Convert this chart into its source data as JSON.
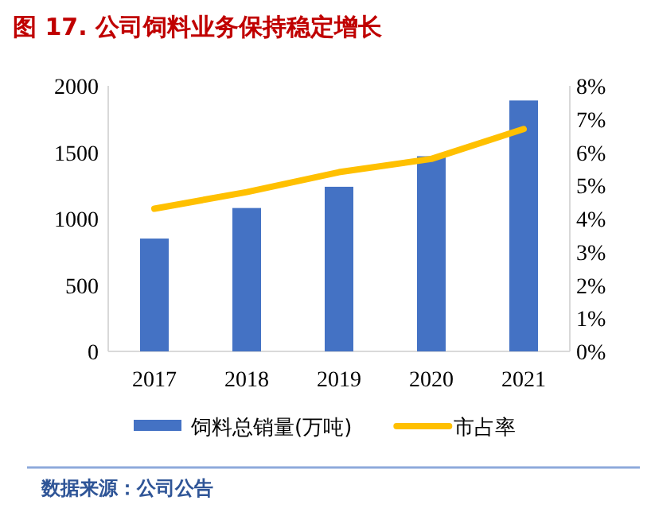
{
  "chart_data": {
    "type": "bar",
    "title": "图 17. 公司饲料业务保持稳定增长",
    "categories": [
      "2017",
      "2018",
      "2019",
      "2020",
      "2021"
    ],
    "series": [
      {
        "name": "饲料总销量(万吨)",
        "color": "#4472c4",
        "values": [
          850,
          1080,
          1240,
          1470,
          1890
        ]
      },
      {
        "name": "市占率",
        "type": "line",
        "axis": "y2",
        "color": "#ffc000",
        "marker": "none",
        "line_style": "solid",
        "values": [
          4.3,
          4.8,
          5.4,
          5.8,
          6.7
        ]
      }
    ],
    "ylim": [
      0,
      2000
    ],
    "yticks": [
      0,
      500,
      1000,
      1500,
      2000
    ],
    "y2lim": [
      0,
      8
    ],
    "y2ticks": [
      {
        "value": 0,
        "label": "0%"
      },
      {
        "value": 1,
        "label": "1%"
      },
      {
        "value": 2,
        "label": "2%"
      },
      {
        "value": 3,
        "label": "3%"
      },
      {
        "value": 4,
        "label": "4%"
      },
      {
        "value": 5,
        "label": "5%"
      },
      {
        "value": 6,
        "label": "6%"
      },
      {
        "value": 7,
        "label": "7%"
      },
      {
        "value": 8,
        "label": "8%"
      }
    ],
    "grid": false,
    "legend": "bottom",
    "annotations": [
      "数据来源：公司公告"
    ]
  }
}
